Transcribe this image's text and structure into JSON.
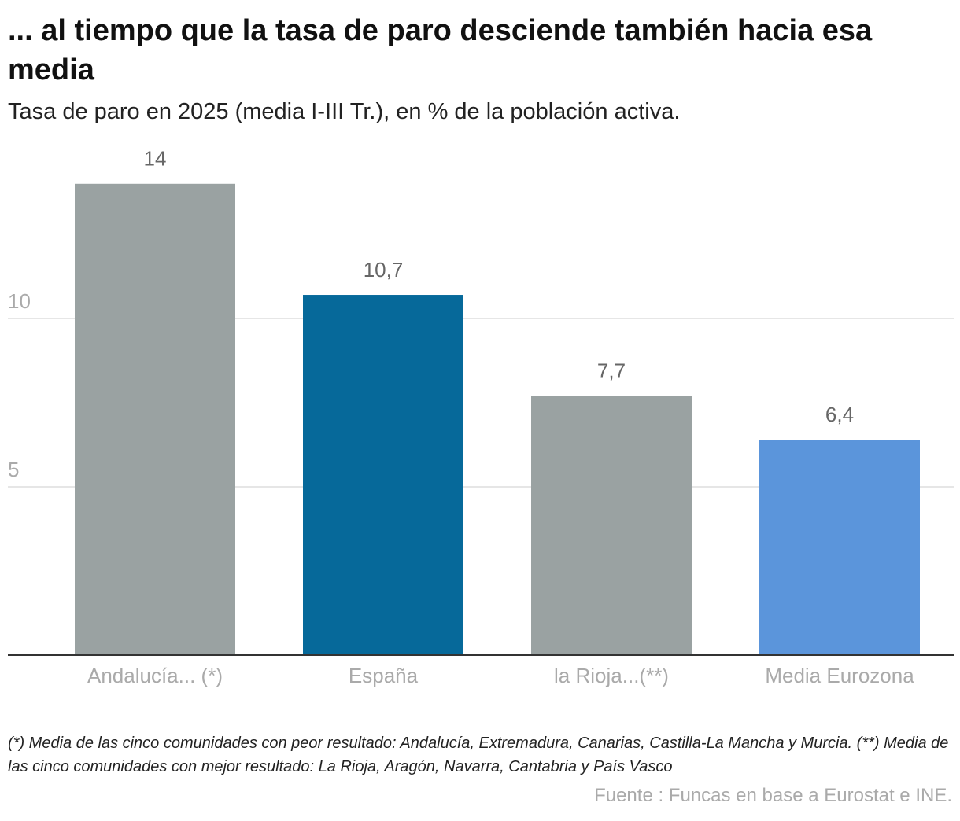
{
  "chart_data": {
    "type": "bar",
    "title": "... al tiempo que la tasa de paro desciende también hacia esa media",
    "subtitle": "Tasa de paro en 2025 (media I-III Tr.), en % de la población activa.",
    "categories": [
      "Andalucía... (*)",
      "España",
      "la Rioja...(**)",
      "Media Eurozona"
    ],
    "values": [
      14,
      10.7,
      7.7,
      6.4
    ],
    "value_labels": [
      "14",
      "10,7",
      "7,7",
      "6,4"
    ],
    "colors": [
      "#9aa2a2",
      "#06699a",
      "#9aa2a2",
      "#5b95db"
    ],
    "ylim": [
      0,
      15
    ],
    "yticks": [
      5,
      10
    ],
    "grid": true,
    "note": "(*) Media de las cinco comunidades con peor resultado: Andalucía, Extremadura, Canarias, Castilla-La Mancha y Murcia. (**) Media de las cinco comunidades con mejor resultado: La Rioja, Aragón, Navarra, Cantabria y País Vasco",
    "source": "Fuente : Funcas en base a Eurostat e INE."
  }
}
